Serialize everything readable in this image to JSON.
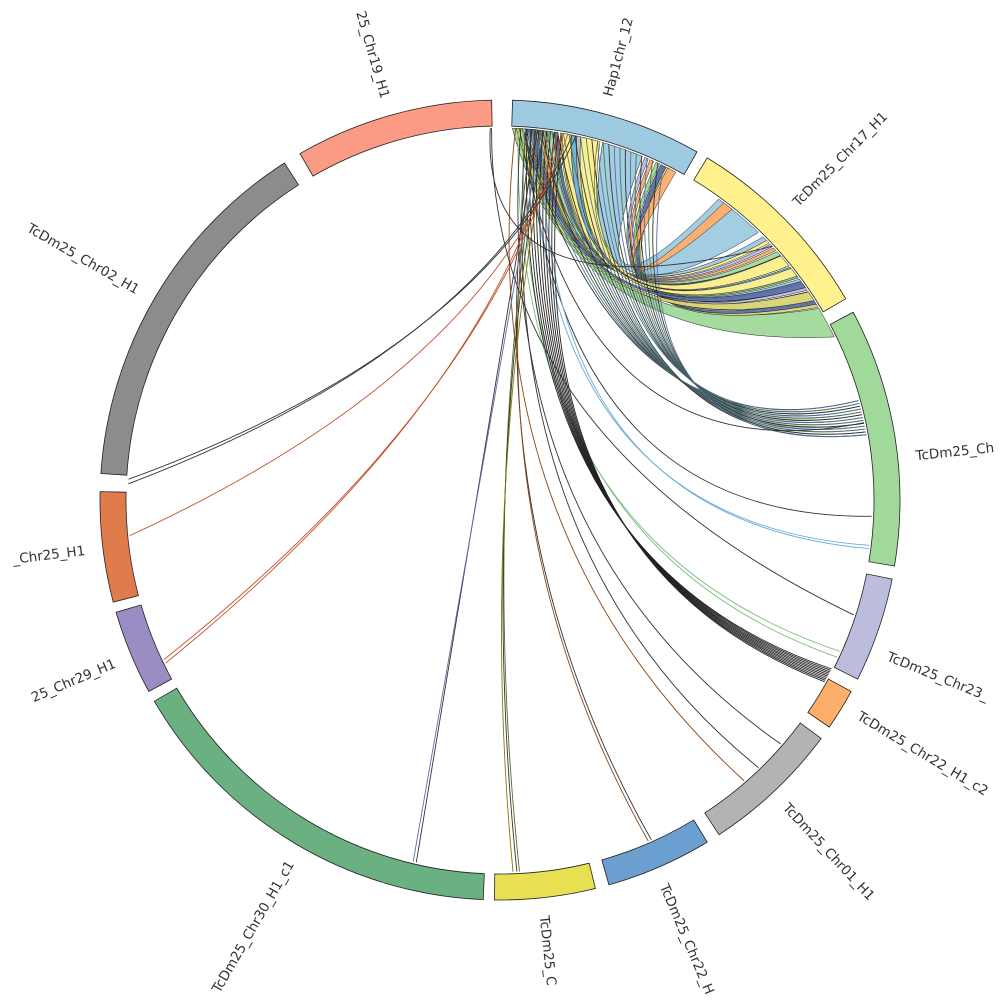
{
  "diagram": {
    "type": "circos-chord",
    "segments": [
      {
        "id": "hap",
        "label": "Hap1chr_12",
        "color": "#9ecae1"
      },
      {
        "id": "c17",
        "label": "TcDm25_Chr17_H1",
        "color": "#fff28e"
      },
      {
        "id": "c3",
        "label": "TcDm25_Ch",
        "color": "#a1d99b"
      },
      {
        "id": "c23",
        "label": "TcDm25_Chr23_",
        "color": "#bcbddc"
      },
      {
        "id": "c22c2",
        "label": "TcDm25_Chr22_H1_c2",
        "color": "#fdae6b"
      },
      {
        "id": "c01",
        "label": "TcDm25_Chr01_H1",
        "color": "#b3b3b3"
      },
      {
        "id": "c22",
        "label": "TcDm25_Chr22_H",
        "color": "#6a9fcf"
      },
      {
        "id": "cch",
        "label": "TcDm25_C",
        "color": "#e7e052"
      },
      {
        "id": "c30",
        "label": "TcDm25_Chr30_H1_c1",
        "color": "#6bb080"
      },
      {
        "id": "c29",
        "label": "25_Chr29_H1",
        "color": "#9c8cc4"
      },
      {
        "id": "c25",
        "label": "_Chr25_H1",
        "color": "#e07c4c"
      },
      {
        "id": "c02",
        "label": "TcDm25_Chr02_H1",
        "color": "#8c8c8c"
      },
      {
        "id": "c19",
        "label": "25_Chr19_H1",
        "color": "#fb9a85"
      }
    ],
    "ribbon_colors": [
      "#9ecae1",
      "#fff28e",
      "#bcbddc",
      "#fdae6b",
      "#a1d99b",
      "#5b6fa8",
      "#d9d977",
      "#e8a07a",
      "#6baed6",
      "#bdbdbd",
      "#7fbf7f"
    ]
  }
}
